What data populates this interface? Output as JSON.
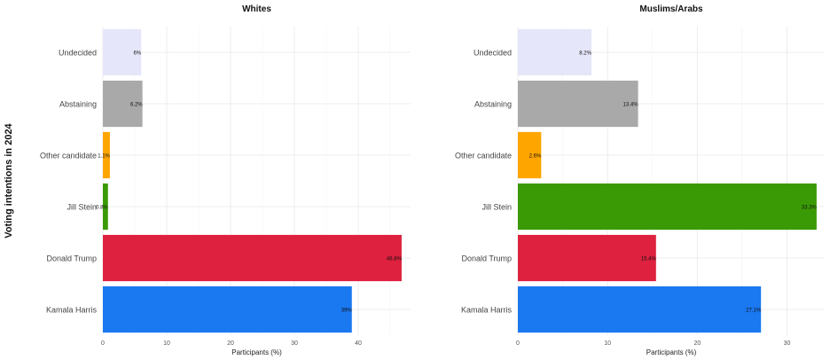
{
  "figure": {
    "ylabel": "Voting intentions in 2024",
    "xlabel": "Participants (%)"
  },
  "chart_data": [
    {
      "type": "bar",
      "orientation": "horizontal",
      "title": "Whites",
      "xlabel": "Participants (%)",
      "ylabel": "Voting intentions in 2024",
      "xlim": [
        0,
        48.2
      ],
      "xticks": [
        0,
        10,
        20,
        30,
        40
      ],
      "categories": [
        "Kamala Harris",
        "Donald Trump",
        "Jill Stein",
        "Other candidate",
        "Abstaining",
        "Undecided"
      ],
      "values": [
        39,
        46.8,
        0.8,
        1.1,
        6.2,
        6
      ],
      "labels": [
        "39%",
        "46.8%",
        "0.8%",
        "1.1%",
        "6.2%",
        "6%"
      ],
      "colors": [
        "#1a78f0",
        "#de213f",
        "#3a9a05",
        "#ffa500",
        "#a9a9a9",
        "#e6e6fa"
      ],
      "grid": true
    },
    {
      "type": "bar",
      "orientation": "horizontal",
      "title": "Muslims/Arabs",
      "xlabel": "Participants (%)",
      "ylabel": "Voting intentions in 2024",
      "xlim": [
        0,
        34.2
      ],
      "xticks": [
        0,
        10,
        20,
        30
      ],
      "categories": [
        "Kamala Harris",
        "Donald Trump",
        "Jill Stein",
        "Other candidate",
        "Abstaining",
        "Undecided"
      ],
      "values": [
        27.1,
        15.4,
        33.3,
        2.6,
        13.4,
        8.2
      ],
      "labels": [
        "27.1%",
        "15.4%",
        "33.3%",
        "2.6%",
        "13.4%",
        "8.2%"
      ],
      "colors": [
        "#1a78f0",
        "#de213f",
        "#3a9a05",
        "#ffa500",
        "#a9a9a9",
        "#e6e6fa"
      ],
      "grid": true
    }
  ]
}
